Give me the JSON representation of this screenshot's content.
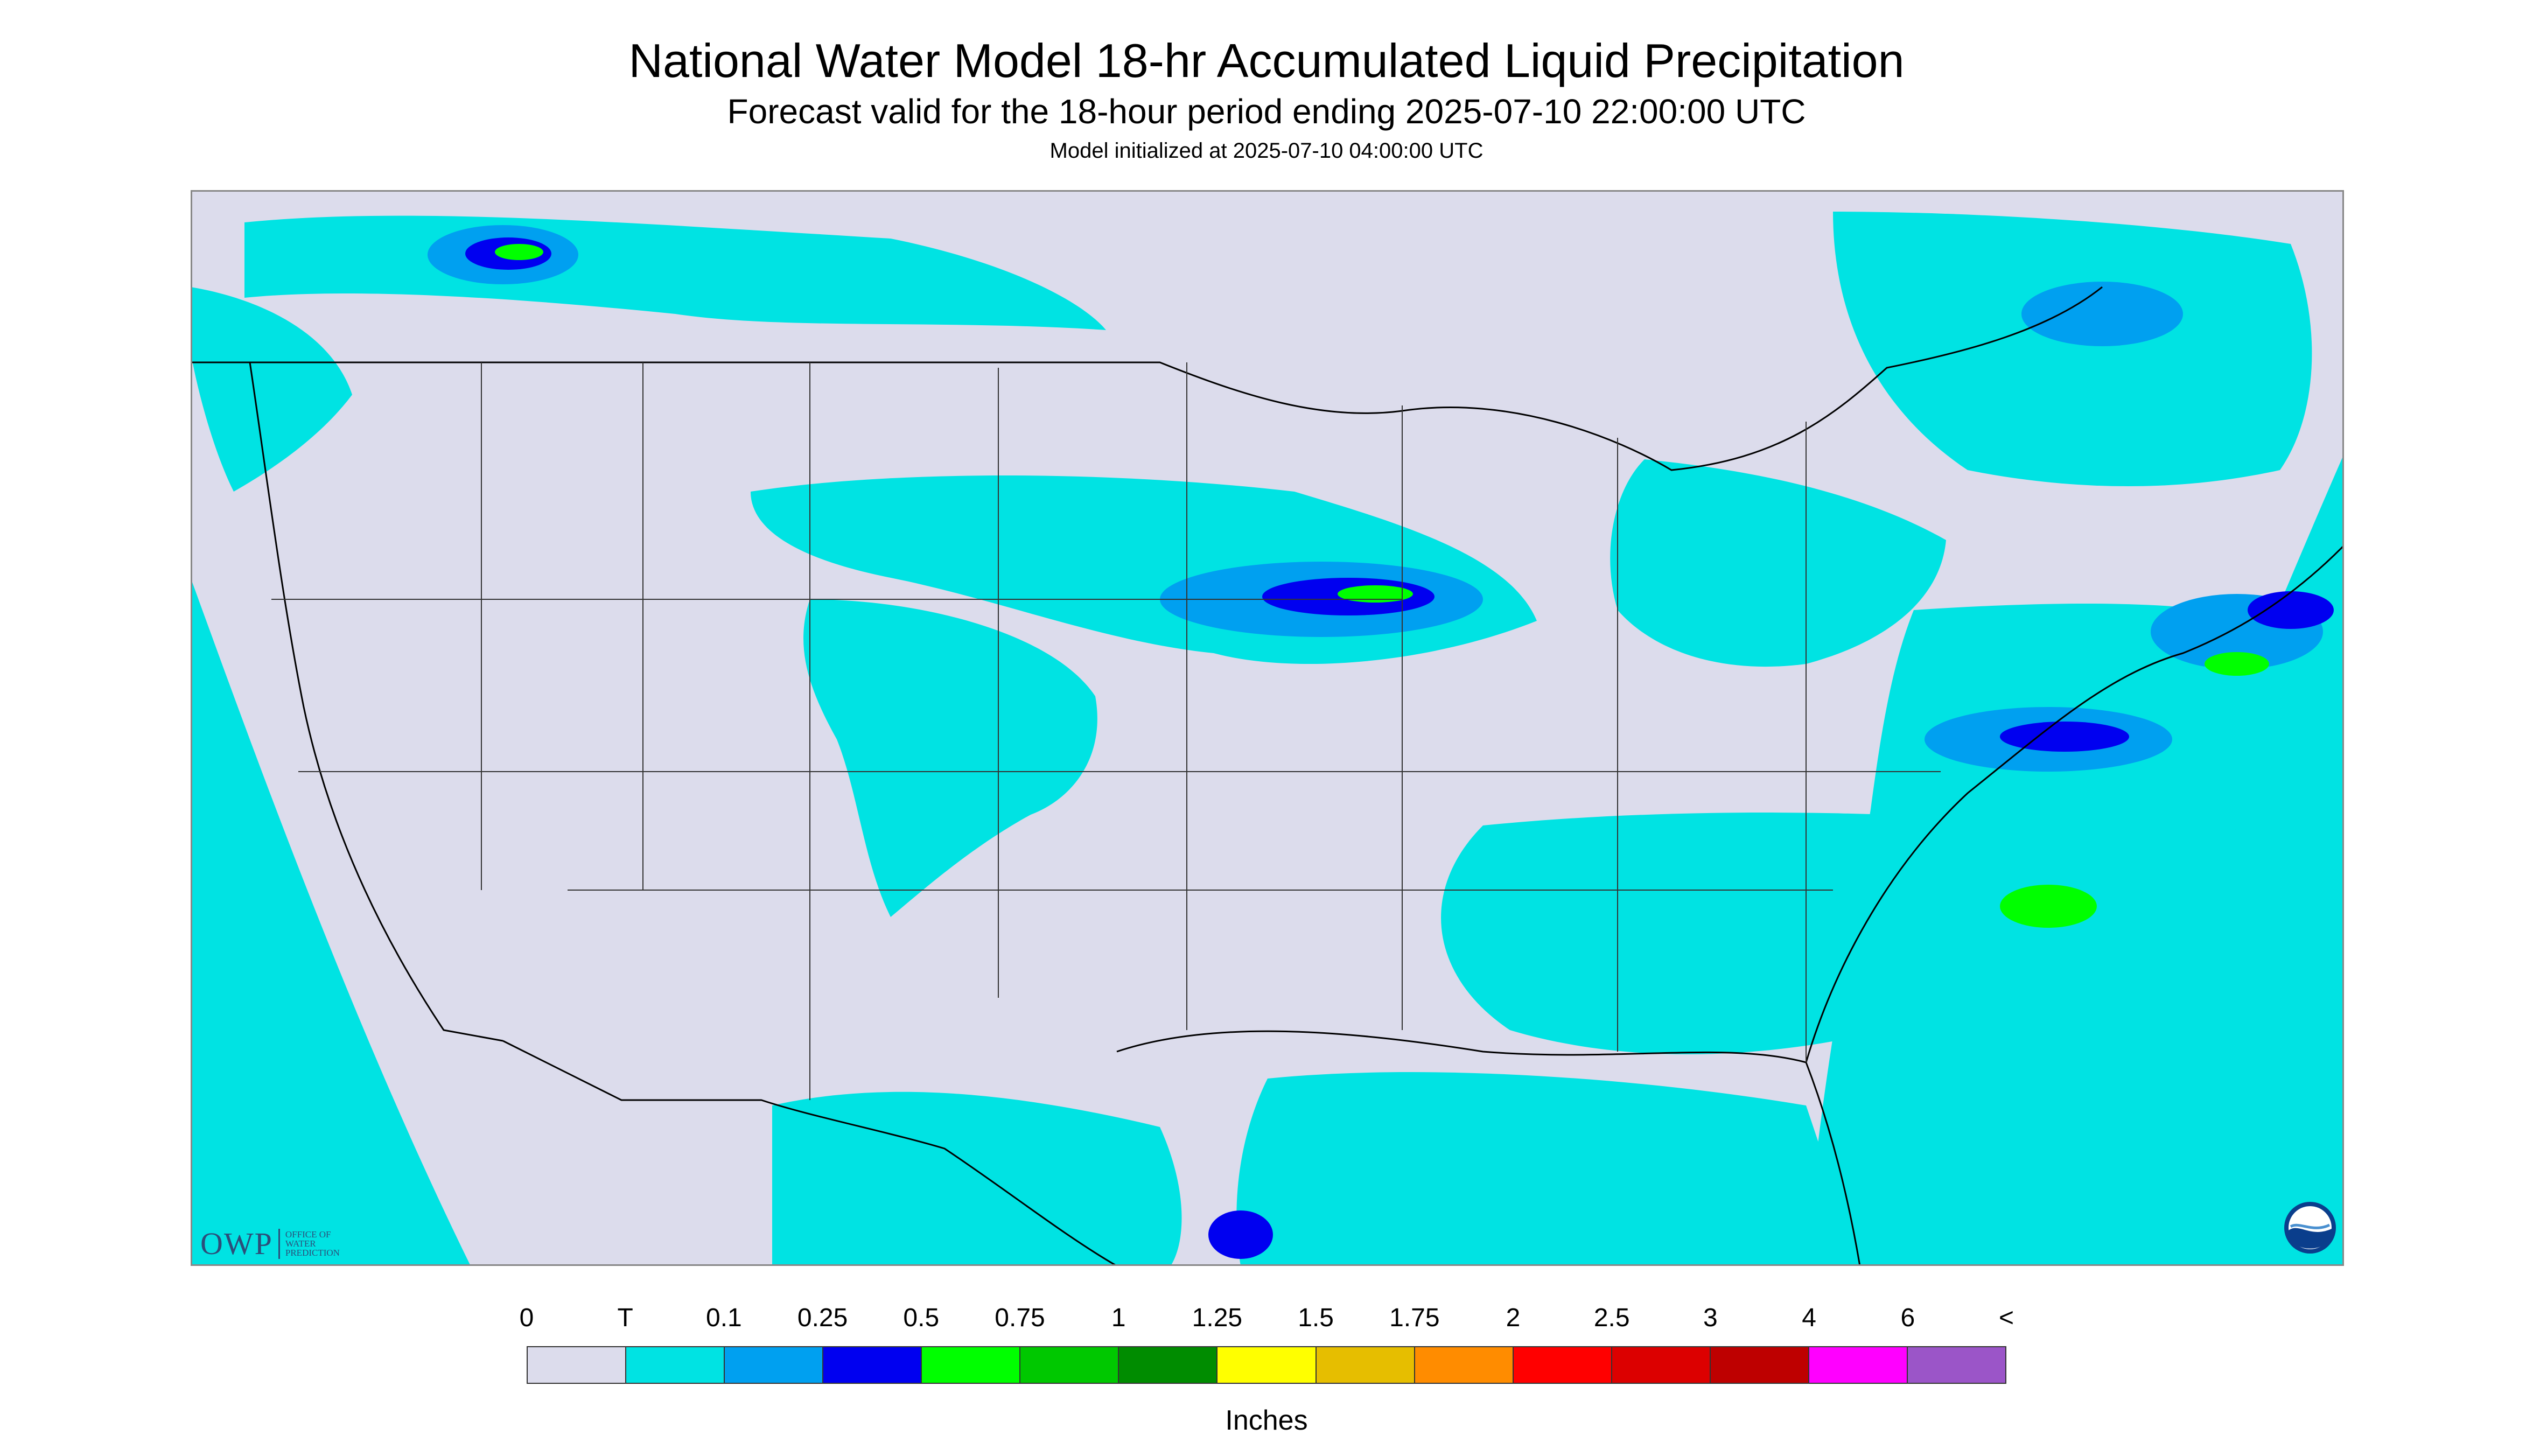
{
  "header": {
    "title": "National Water Model 18-hr Accumulated Liquid Precipitation",
    "subtitle": "Forecast valid for the 18-hour period ending 2025-07-10 22:00:00 UTC",
    "init_line": "Model initialized at 2025-07-10 04:00:00 UTC"
  },
  "map": {
    "projection": "Lambert Conformal (CONUS)",
    "background_color": "#dcdcec",
    "outside_domain_color": "#00e3e3",
    "boundary_color": "#000000"
  },
  "logos": {
    "owp": {
      "mark": "OWP",
      "text": "OFFICE OF WATER PREDICTION"
    },
    "noaa": {
      "text": "NOAA",
      "icon": "noaa-icon"
    }
  },
  "legend": {
    "units": "Inches",
    "tick_labels": [
      "0",
      "T",
      "0.1",
      "0.25",
      "0.5",
      "0.75",
      "1",
      "1.25",
      "1.5",
      "1.75",
      "2",
      "2.5",
      "3",
      "4",
      "6",
      "<"
    ],
    "colors": [
      "#dcdcec",
      "#00e3e3",
      "#00a0f0",
      "#0000f0",
      "#00ff00",
      "#00c800",
      "#008c00",
      "#ffff00",
      "#e6be00",
      "#ff8c00",
      "#ff0000",
      "#dc0000",
      "#be0000",
      "#ff00ff",
      "#9b55c8"
    ]
  }
}
